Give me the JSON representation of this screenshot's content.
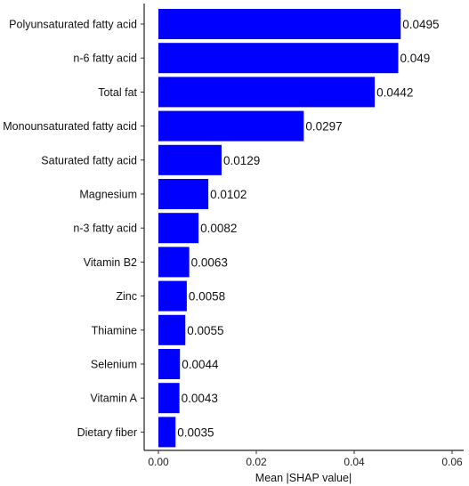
{
  "chart_data": {
    "type": "bar",
    "orientation": "horizontal",
    "categories": [
      "Polyunsaturated fatty acid",
      "n-6 fatty acid",
      "Total fat",
      "Monounsaturated fatty acid",
      "Saturated fatty acid",
      "Magnesium",
      "n-3 fatty acid",
      "Vitamin B2",
      "Zinc",
      "Thiamine",
      "Selenium",
      "Vitamin A",
      "Dietary fiber"
    ],
    "values": [
      0.0495,
      0.049,
      0.0442,
      0.0297,
      0.0129,
      0.0102,
      0.0082,
      0.0063,
      0.0058,
      0.0055,
      0.0044,
      0.0043,
      0.0035
    ],
    "value_labels": [
      "0.0495",
      "0.049",
      "0.0442",
      "0.0297",
      "0.0129",
      "0.0102",
      "0.0082",
      "0.0063",
      "0.0058",
      "0.0055",
      "0.0044",
      "0.0043",
      "0.0035"
    ],
    "title": "",
    "xlabel": "Mean |SHAP value|",
    "ylabel": "",
    "xlim": [
      0,
      0.06
    ],
    "xticks": [
      0,
      0.02,
      0.04,
      0.06
    ],
    "xtick_labels": [
      "0.00",
      "0.02",
      "0.04",
      "0.06"
    ],
    "grid": false,
    "legend": "none",
    "bar_color": "#0000ff",
    "background": "#ffffff"
  }
}
